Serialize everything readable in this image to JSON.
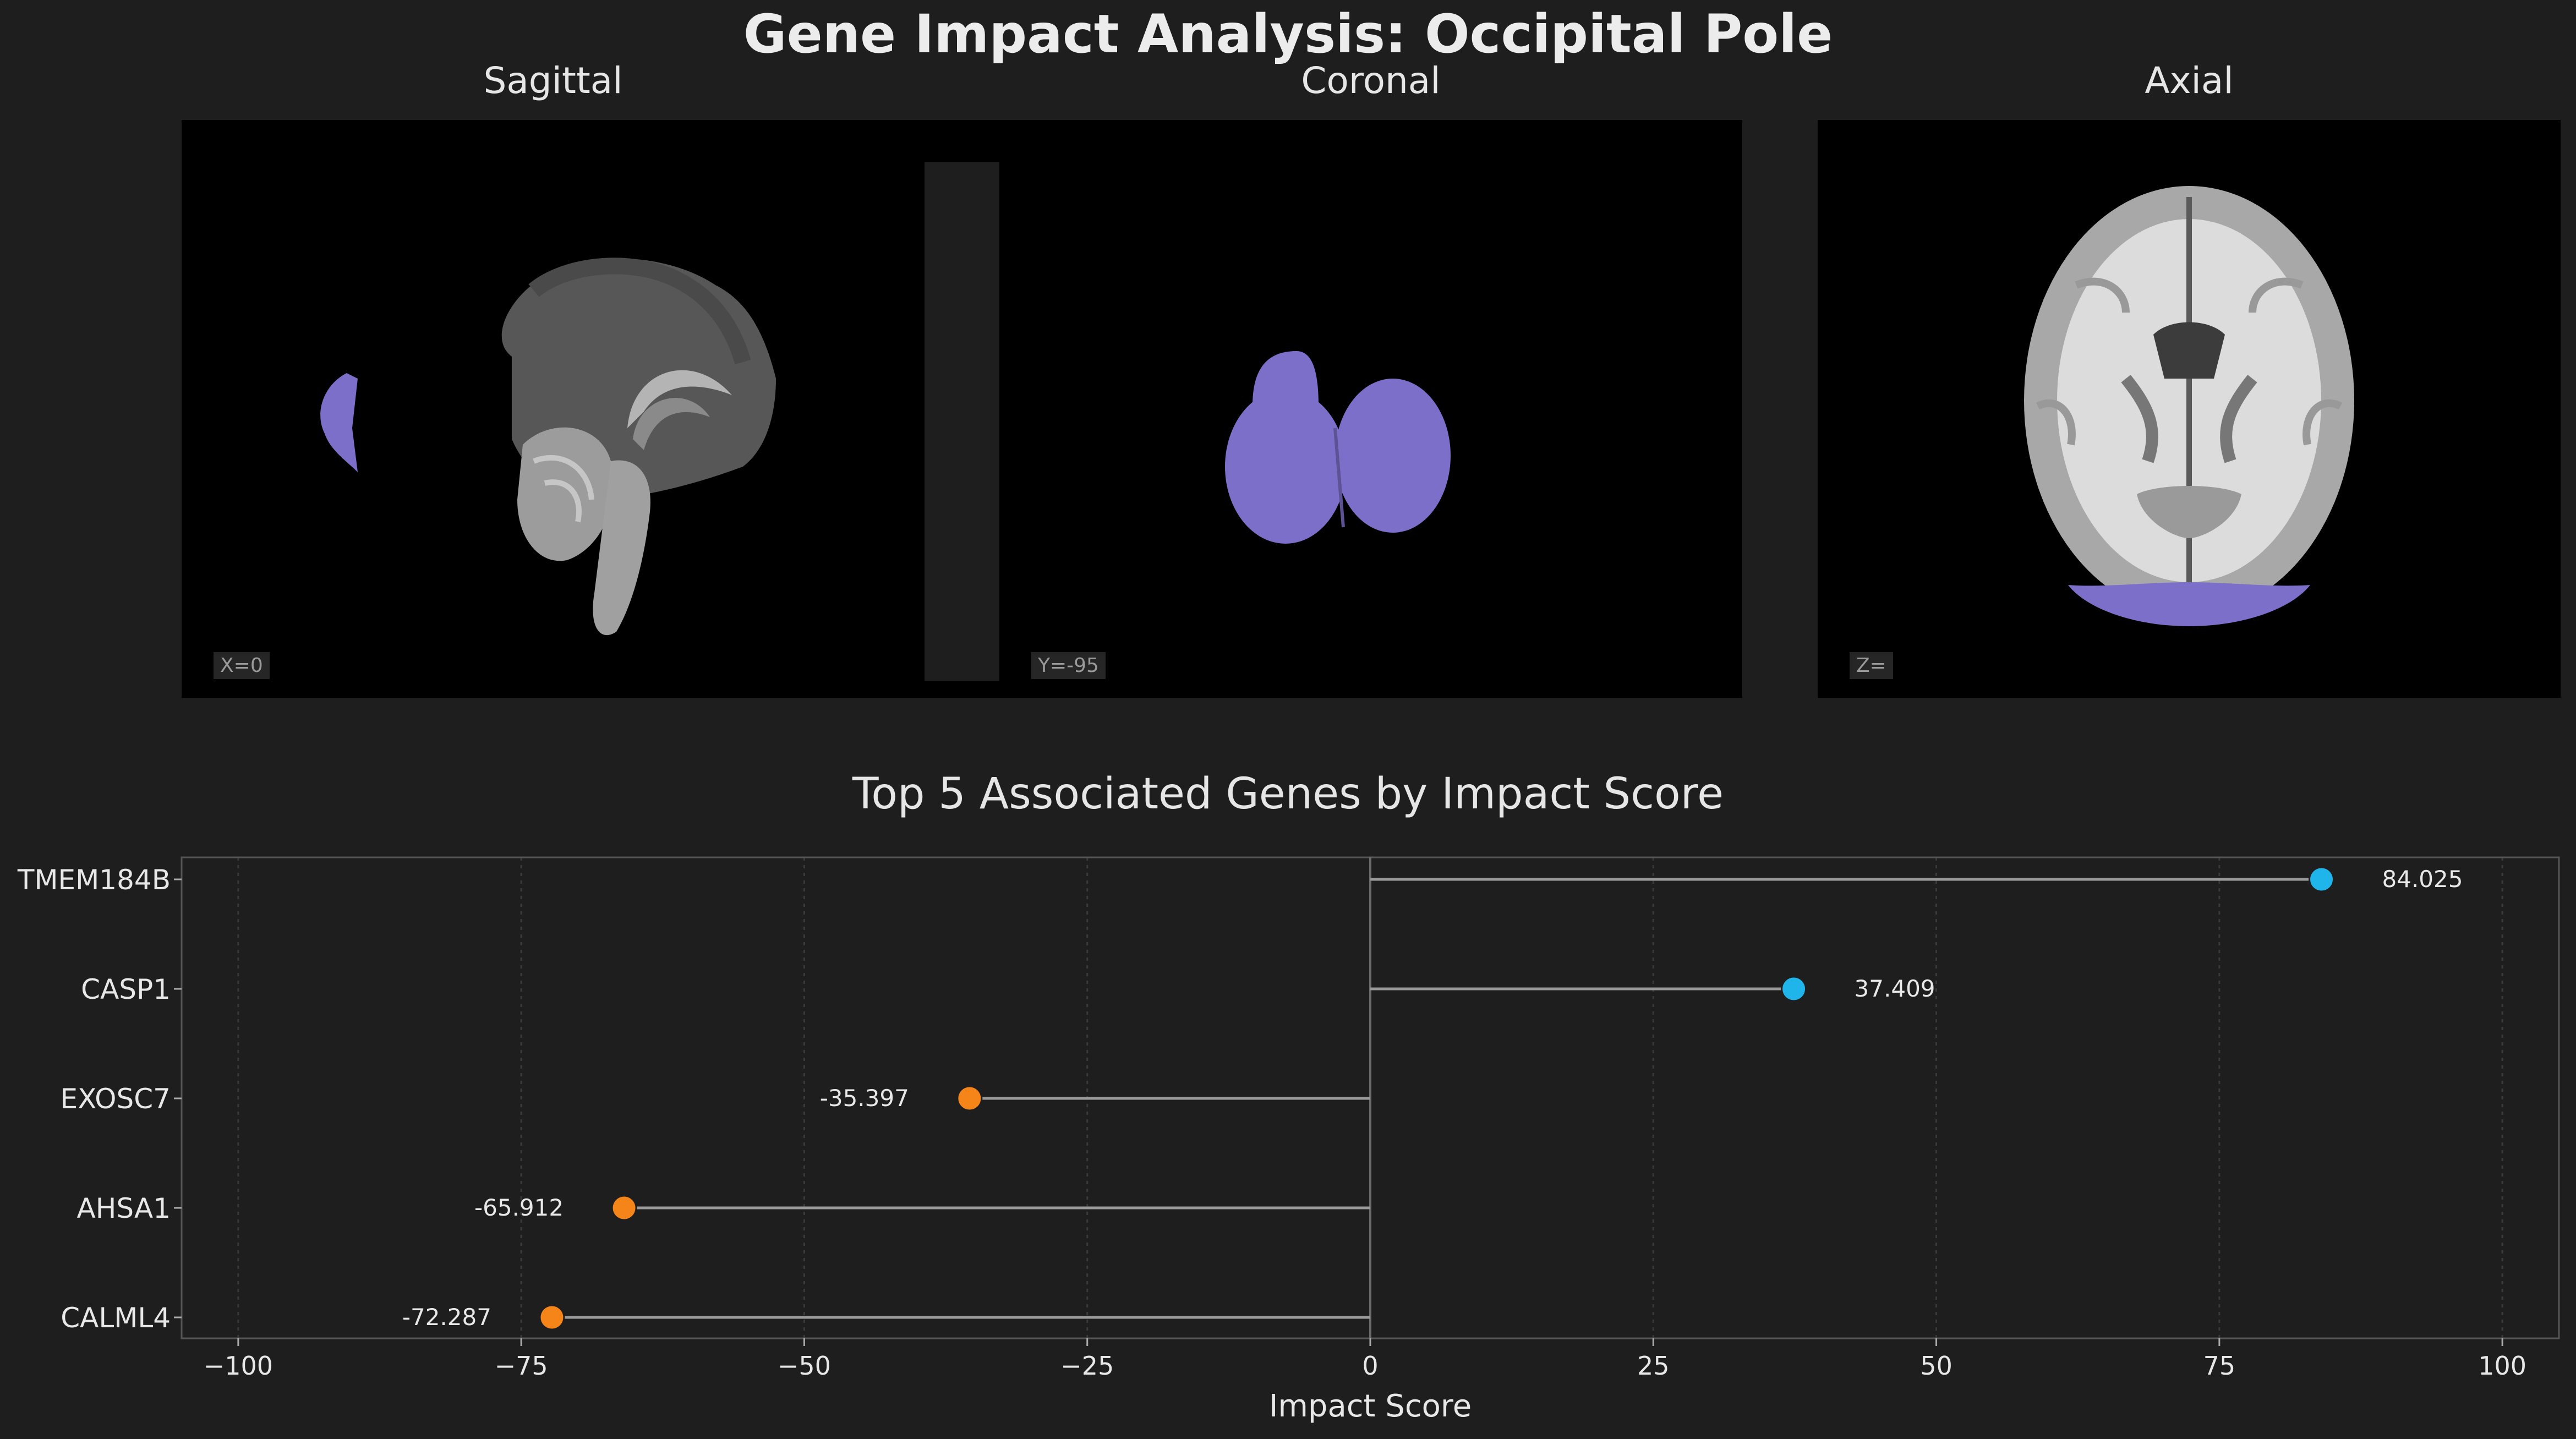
{
  "title": "Gene Impact Analysis: Occipital Pole",
  "views": [
    {
      "name": "Sagittal",
      "coord": "X=0"
    },
    {
      "name": "Coronal",
      "coord": "Y=-95"
    },
    {
      "name": "Axial",
      "coord": "Z="
    }
  ],
  "colors": {
    "background": "#1e1e1e",
    "region_overlay": "#7b6fc9",
    "positive": "#1fb5ea",
    "negative": "#f58518",
    "stem": "#9a9a9a"
  },
  "chart_data": {
    "type": "lollipop",
    "title": "Top 5 Associated Genes by Impact Score",
    "xlabel": "Impact Score",
    "ylabel": "",
    "xlim": [
      -105,
      105
    ],
    "xticks": [
      -100,
      -75,
      -50,
      -25,
      0,
      25,
      50,
      75,
      100
    ],
    "xtick_labels": [
      "−100",
      "−75",
      "−50",
      "−25",
      "0",
      "25",
      "50",
      "75",
      "100"
    ],
    "grid": "vertical dotted",
    "categories": [
      "TMEM184B",
      "CASP1",
      "EXOSC7",
      "AHSA1",
      "CALML4"
    ],
    "values": [
      84.025,
      37.409,
      -35.397,
      -65.912,
      -72.287
    ],
    "value_labels": [
      "84.025",
      "37.409",
      "-35.397",
      "-65.912",
      "-72.287"
    ]
  }
}
